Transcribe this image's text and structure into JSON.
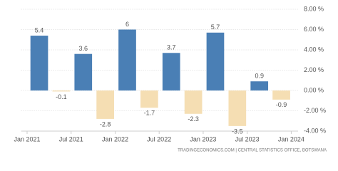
{
  "chart_data": {
    "type": "bar",
    "categories": [
      null,
      null,
      null,
      null,
      null,
      null,
      null,
      null,
      null,
      null,
      null,
      null
    ],
    "values": [
      5.4,
      -0.1,
      3.6,
      -2.8,
      6,
      -1.7,
      3.7,
      -2.3,
      5.7,
      -3.5,
      0.9,
      -0.9
    ],
    "x_tick_labels": [
      "Jan 2021",
      "Jul 2021",
      "Jan 2022",
      "Jul 2022",
      "Jan 2023",
      "Jul 2023",
      "Jan 2024"
    ],
    "positive_color": "#4a7fb5",
    "negative_color": "#f5deb3",
    "ylim": [
      -4,
      8
    ],
    "yticks": [
      {
        "value": 8,
        "label": "8.00 %"
      },
      {
        "value": 6,
        "label": "6.00 %"
      },
      {
        "value": 4,
        "label": "4.00 %"
      },
      {
        "value": 2,
        "label": "2.00 %"
      },
      {
        "value": 0,
        "label": "0.00 %"
      },
      {
        "value": -2,
        "label": "-2.00 %"
      },
      {
        "value": -4,
        "label": "-4.00 %"
      }
    ],
    "grid": true,
    "source": "TRADINGECONOMICS.COM | CENTRAL STATISTICS OFFICE, BOTSWANA"
  }
}
